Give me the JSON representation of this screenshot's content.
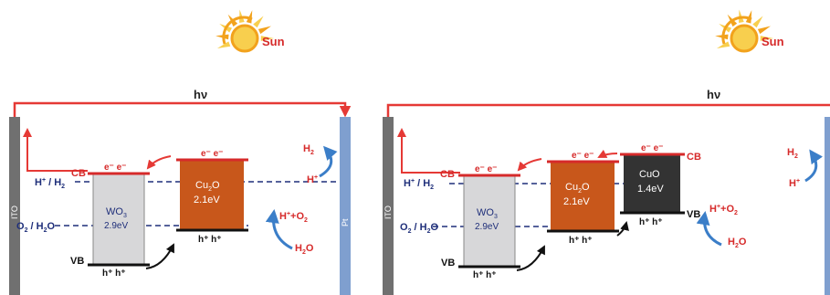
{
  "colors": {
    "wire": "#e53935",
    "ito": "#707070",
    "pt": "#7f9fcf",
    "wo3_fill": "#d7d7d9",
    "cu2o_fill": "#c8571b",
    "cuo_fill": "#333333",
    "label_red": "#d62a2a",
    "level_blue": "#1f2f7a",
    "curved_arrow_blue": "#3b7ec8",
    "sun_ray": "#f2a21c",
    "sun_ray_light": "#f8cf4e",
    "text_dark": "#222222",
    "bottom_bar": "#111111"
  },
  "icons": {
    "sun": "sun-icon"
  },
  "left_panel": {
    "sun_label": "Sun",
    "hv": "hν",
    "ito": "ITO",
    "pt": "Pt",
    "h_plus_h2": [
      "H",
      "+",
      " / H",
      "2"
    ],
    "o2_h2o": [
      "O",
      "2",
      " / H",
      "2",
      "O"
    ],
    "cb_label": "CB",
    "vb_label": "VB",
    "electrons": "e⁻ e⁻",
    "holes": "h⁺ h⁺",
    "wo3": {
      "name": [
        "WO",
        "3"
      ],
      "gap": "2.9eV"
    },
    "cu2o": {
      "name": [
        "Cu",
        "2",
        "O"
      ],
      "gap": "2.1eV"
    },
    "products": {
      "h2": [
        "H",
        "2"
      ],
      "h_plus": [
        "H",
        "+"
      ],
      "h_plus_o2": [
        "H",
        "+",
        "+O",
        "2"
      ],
      "h2o": [
        "H",
        "2",
        "O"
      ]
    }
  },
  "right_panel": {
    "sun_label": "Sun",
    "hv": "hν",
    "ito": "ITO",
    "pt": "Pt",
    "h_plus_h2": [
      "H",
      "+",
      " / H",
      "2"
    ],
    "o2_h2o": [
      "O",
      "2",
      " / H",
      "2",
      "O"
    ],
    "cb_label": "CB",
    "vb_label": "VB",
    "electrons": "e⁻ e⁻",
    "holes": "h⁺ h⁺",
    "wo3": {
      "name": [
        "WO",
        "3"
      ],
      "gap": "2.9eV"
    },
    "cu2o": {
      "name": [
        "Cu",
        "2",
        "O"
      ],
      "gap": "2.1eV"
    },
    "cuo": {
      "name": "CuO",
      "gap": "1.4eV"
    },
    "products": {
      "h2": [
        "H",
        "2"
      ],
      "h_plus": [
        "H",
        "+"
      ],
      "h_plus_o2": [
        "H",
        "+",
        "+O",
        "2"
      ],
      "h2o": [
        "H",
        "2",
        "O"
      ]
    }
  }
}
